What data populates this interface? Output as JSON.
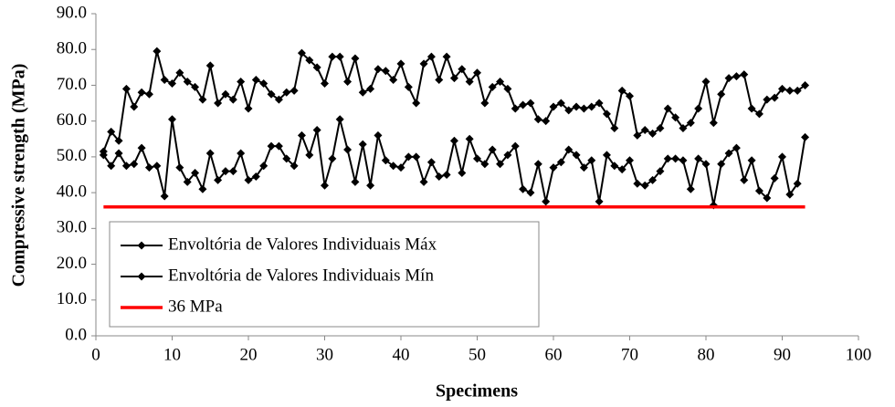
{
  "chart_data": {
    "type": "line",
    "xlabel": "Specimens",
    "ylabel": "Compressive strength (MPa)",
    "xlim": [
      0,
      100
    ],
    "xticks": [
      0,
      10,
      20,
      30,
      40,
      50,
      60,
      70,
      80,
      90,
      100
    ],
    "ylim": [
      0,
      90
    ],
    "yticks": [
      {
        "value": 0,
        "label": "0.0"
      },
      {
        "value": 10,
        "label": "10.0"
      },
      {
        "value": 20,
        "label": "20.0"
      },
      {
        "value": 30,
        "label": "30.0"
      },
      {
        "value": 40,
        "label": "40.0"
      },
      {
        "value": 50,
        "label": "50.0"
      },
      {
        "value": 60,
        "label": "60.0"
      },
      {
        "value": 70,
        "label": "70.0"
      },
      {
        "value": 80,
        "label": "80.0"
      },
      {
        "value": 90,
        "label": "90.0"
      }
    ],
    "grid": false,
    "legend": "lower left",
    "series": [
      {
        "name": "Envoltória de Valores Individuais Máx",
        "color": "#000000",
        "marker": "diamond",
        "x": [
          1,
          2,
          3,
          4,
          5,
          6,
          7,
          8,
          9,
          10,
          11,
          12,
          13,
          14,
          15,
          16,
          17,
          18,
          19,
          20,
          21,
          22,
          23,
          24,
          25,
          26,
          27,
          28,
          29,
          30,
          31,
          32,
          33,
          34,
          35,
          36,
          37,
          38,
          39,
          40,
          41,
          42,
          43,
          44,
          45,
          46,
          47,
          48,
          49,
          50,
          51,
          52,
          53,
          54,
          55,
          56,
          57,
          58,
          59,
          60,
          61,
          62,
          63,
          64,
          65,
          66,
          67,
          68,
          69,
          70,
          71,
          72,
          73,
          74,
          75,
          76,
          77,
          78,
          79,
          80,
          81,
          82,
          83,
          84,
          85,
          86,
          87,
          88,
          89,
          90,
          91,
          92,
          93
        ],
        "values": [
          51.5,
          57,
          54.5,
          69,
          64,
          68,
          67.5,
          79.5,
          71.5,
          70.5,
          73.5,
          71,
          69.5,
          66,
          75.5,
          65,
          67.5,
          66,
          71,
          63.5,
          71.5,
          70.5,
          67.5,
          66,
          68,
          68.5,
          79,
          77,
          75,
          70.5,
          78,
          78,
          71,
          77.5,
          68,
          69,
          74.5,
          74,
          71.5,
          76,
          69.5,
          65,
          76,
          78,
          71.5,
          78,
          72,
          74.5,
          71,
          73.5,
          65,
          69.5,
          71,
          69,
          63.5,
          64.5,
          65,
          60.5,
          60,
          64,
          65,
          63,
          64,
          63.5,
          64,
          65,
          62,
          58,
          68.5,
          67,
          56,
          57.5,
          56.5,
          58,
          63.5,
          61,
          58,
          59.5,
          63.5,
          71,
          59.5,
          67.5,
          72,
          72.5,
          73,
          63.5,
          62,
          66,
          66.5,
          69,
          68.5,
          68.5,
          70
        ]
      },
      {
        "name": "Envoltória de Valores Individuais Mín",
        "color": "#000000",
        "marker": "diamond",
        "x": [
          1,
          2,
          3,
          4,
          5,
          6,
          7,
          8,
          9,
          10,
          11,
          12,
          13,
          14,
          15,
          16,
          17,
          18,
          19,
          20,
          21,
          22,
          23,
          24,
          25,
          26,
          27,
          28,
          29,
          30,
          31,
          32,
          33,
          34,
          35,
          36,
          37,
          38,
          39,
          40,
          41,
          42,
          43,
          44,
          45,
          46,
          47,
          48,
          49,
          50,
          51,
          52,
          53,
          54,
          55,
          56,
          57,
          58,
          59,
          60,
          61,
          62,
          63,
          64,
          65,
          66,
          67,
          68,
          69,
          70,
          71,
          72,
          73,
          74,
          75,
          76,
          77,
          78,
          79,
          80,
          81,
          82,
          83,
          84,
          85,
          86,
          87,
          88,
          89,
          90,
          91,
          92,
          93
        ],
        "values": [
          50.5,
          47.5,
          51,
          47.5,
          48,
          52.5,
          47,
          47.5,
          39,
          60.5,
          47,
          43,
          45.5,
          41,
          51,
          43.5,
          46,
          46,
          51,
          43.5,
          44.5,
          47.5,
          53,
          53,
          49.5,
          47.5,
          56,
          50.5,
          57.5,
          42,
          49.5,
          60.5,
          52,
          43,
          53.5,
          42,
          56,
          49,
          47.5,
          47,
          50,
          50,
          43,
          48.5,
          44.5,
          45,
          54.5,
          45.5,
          55,
          49.5,
          48,
          52,
          48,
          50.5,
          53,
          41,
          40,
          48,
          37.5,
          47,
          48.5,
          52,
          50.5,
          47,
          49,
          37.5,
          50.5,
          47.5,
          46.5,
          49,
          42.5,
          42,
          43.5,
          46,
          49.5,
          49.5,
          49,
          41,
          49.5,
          48,
          36.5,
          48,
          51,
          52.5,
          43.5,
          49,
          40.5,
          38.5,
          44,
          50,
          39.5,
          42.5,
          55.5
        ]
      },
      {
        "name": "36 MPa",
        "color": "#ff0000",
        "marker": "none",
        "x": [
          1,
          93
        ],
        "values": [
          36,
          36
        ]
      }
    ]
  }
}
